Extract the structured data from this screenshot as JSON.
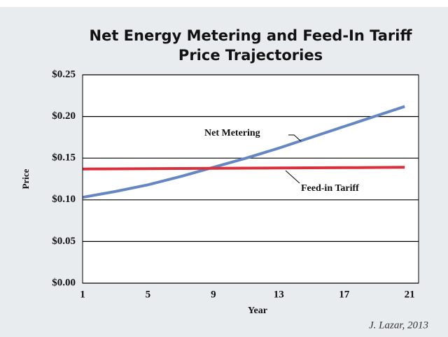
{
  "chart_data": {
    "type": "line",
    "title": [
      "Net Energy Metering and Feed-In Tariff",
      "Price Trajectories"
    ],
    "x_label": "Year",
    "y_label": "Price",
    "x": [
      1,
      3,
      5,
      7,
      9,
      11,
      13,
      15,
      17,
      19,
      20.7
    ],
    "series": [
      {
        "name": "Net Metering",
        "color": "#6487c4",
        "values": [
          0.103,
          0.11,
          0.118,
          0.128,
          0.139,
          0.15,
          0.162,
          0.175,
          0.188,
          0.201,
          0.212
        ]
      },
      {
        "name": "Feed-in Tariff",
        "color": "#d9303c",
        "values": [
          0.137,
          0.1372,
          0.1374,
          0.1376,
          0.1378,
          0.138,
          0.1382,
          0.1384,
          0.1386,
          0.1388,
          0.139
        ]
      }
    ],
    "xlim": [
      1,
      21.55
    ],
    "xticks": [
      1,
      5,
      9,
      13,
      17,
      21
    ],
    "ylim": [
      0,
      0.25
    ],
    "yticks": [
      {
        "value": 0,
        "label": "$0.00"
      },
      {
        "value": 0.05,
        "label": "$0.05"
      },
      {
        "value": 0.1,
        "label": "$0.10"
      },
      {
        "value": 0.15,
        "label": "$0.15"
      },
      {
        "value": 0.2,
        "label": "$0.20"
      },
      {
        "value": 0.25,
        "label": "$0.25"
      }
    ],
    "grid": true,
    "source": "J. Lazar, 2013"
  }
}
